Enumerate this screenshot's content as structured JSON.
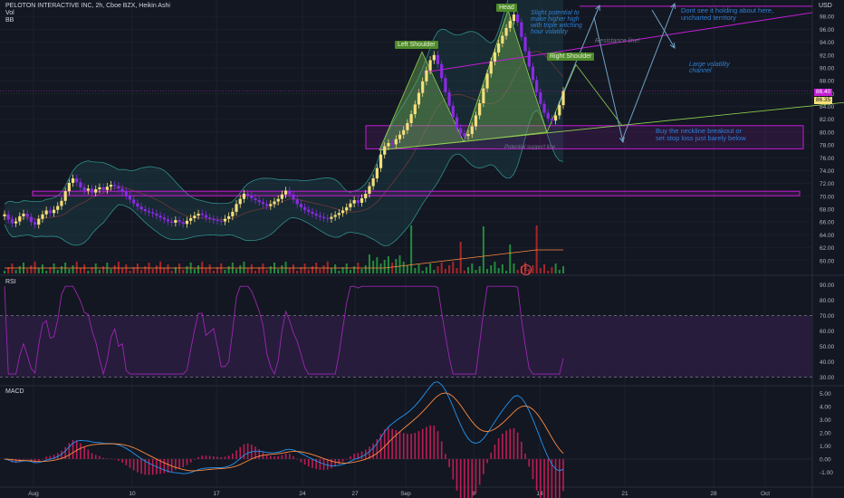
{
  "header": {
    "title": "PELOTON INTERACTIVE INC, 2h, Cboe BZX, Heikin Ashi",
    "vol_label": "Vol",
    "bb_label": "BB",
    "currency": "USD"
  },
  "panes": {
    "rsi_title": "RSI",
    "macd_title": "MACD"
  },
  "price_badges": {
    "last": "86.40",
    "second": "86.35"
  },
  "pattern_labels": {
    "left_shoulder": "Left Shoulder",
    "head": "Head",
    "right_shoulder": "Right Shoulder"
  },
  "annotations": {
    "head_note": "Slight potential to\nmake higher high\nwith triple witching\nhour volatility",
    "resistance": "Resistance line!",
    "top_right": "Dont see it holding about here,\nuncharted territory",
    "volatility": "Large volatility\nchannel",
    "neckline": "Buy the neckline breakout or\nset stop loss just barely below",
    "support": "Potential support line",
    "earnings": "E"
  },
  "colors": {
    "background": "#131722",
    "up_candle": "#f5e07a",
    "down_candle": "#8a2be2",
    "pattern_fill": "#6aa84f",
    "rsi_line": "#9c27b0",
    "rsi_band": "#2a1d3f",
    "macd_line": "#2196f3",
    "signal_line": "#ff8a3d",
    "hist": "#e91e63",
    "annotation": "#2f7fd4",
    "box": "#c51cd6",
    "volume_up": "#26a041",
    "volume_down": "#c62828"
  },
  "chart_data": [
    {
      "type": "candlestick",
      "x_ticks": [
        "Aug",
        "10",
        "17",
        "24",
        "27",
        "Sep",
        "8",
        "14",
        "21",
        "28",
        "Oct"
      ],
      "ylim": [
        58,
        100
      ],
      "y_ticks": [
        60,
        62,
        64,
        66,
        68,
        70,
        72,
        74,
        76,
        78,
        80,
        82,
        84,
        86,
        88,
        90,
        92,
        94,
        96,
        98
      ],
      "close": [
        67.2,
        66.4,
        65.8,
        66.1,
        66.9,
        67.3,
        66.8,
        66.0,
        65.6,
        66.5,
        67.2,
        67.8,
        67.4,
        67.9,
        68.5,
        69.3,
        70.8,
        72.1,
        72.8,
        72.2,
        71.4,
        70.9,
        71.2,
        70.6,
        71.1,
        71.4,
        71.0,
        71.5,
        71.8,
        71.6,
        71.2,
        70.7,
        70.1,
        69.5,
        68.9,
        68.4,
        68.0,
        67.7,
        67.5,
        67.3,
        67.0,
        66.7,
        66.4,
        66.1,
        65.9,
        66.3,
        66.0,
        65.7,
        66.2,
        66.6,
        67.0,
        67.3,
        67.1,
        66.7,
        66.5,
        66.3,
        66.2,
        66.1,
        66.5,
        66.9,
        67.6,
        68.8,
        69.6,
        70.4,
        70.1,
        69.7,
        69.4,
        69.1,
        68.8,
        68.5,
        68.8,
        69.2,
        69.6,
        70.3,
        70.9,
        70.3,
        69.5,
        68.8,
        68.3,
        67.9,
        67.6,
        67.3,
        67.0,
        66.8,
        66.6,
        66.5,
        66.8,
        67.1,
        67.4,
        67.8,
        68.3,
        68.9,
        69.4,
        69.0,
        69.7,
        70.4,
        71.6,
        72.8,
        74.4,
        76.5,
        77.8,
        78.3,
        78.1,
        78.9,
        79.6,
        80.3,
        81.4,
        82.8,
        84.3,
        86.1,
        87.9,
        89.6,
        91.2,
        92.0,
        90.6,
        88.4,
        86.2,
        84.1,
        82.3,
        80.6,
        79.8,
        79.4,
        79.7,
        80.9,
        82.6,
        84.5,
        86.8,
        89.1,
        91.0,
        92.4,
        93.8,
        95.0,
        96.2,
        97.3,
        98.3,
        97.1,
        94.8,
        92.6,
        90.2,
        88.1,
        86.2,
        84.4,
        83.0,
        82.1,
        81.8,
        82.6,
        84.2,
        86.4
      ],
      "volume_relative": "shown as histogram, higher spikes around Sep 8 and Sep 14"
    },
    {
      "type": "line",
      "name": "RSI",
      "ylim": [
        25,
        95
      ],
      "y_ticks": [
        30,
        40,
        50,
        60,
        70,
        80,
        90
      ],
      "bands": [
        30,
        70
      ]
    },
    {
      "type": "line",
      "name": "MACD",
      "ylim": [
        -2,
        5.5
      ],
      "y_ticks": [
        -1,
        0,
        1,
        2,
        3,
        4,
        5
      ]
    }
  ]
}
